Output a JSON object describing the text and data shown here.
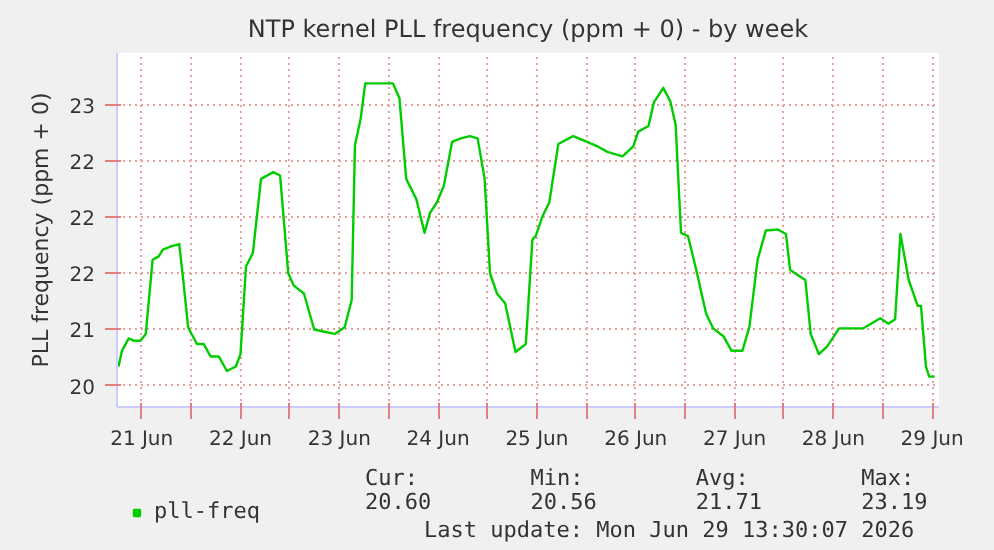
{
  "chart_data": {
    "type": "line",
    "title": "NTP kernel PLL frequency (ppm + 0) - by week",
    "ylabel": "PLL frequency (ppm + 0)",
    "x": [
      "2026-06-21T06:22",
      "2026-06-21T07:12",
      "2026-06-21T08:51",
      "2026-06-21T10:01",
      "2026-06-21T11:40",
      "2026-06-21T12:59",
      "2026-06-21T14:39",
      "2026-06-21T16:08",
      "2026-06-21T17:08",
      "2026-06-21T19:07",
      "2026-06-21T21:07",
      "2026-06-21T22:06",
      "2026-06-21T23:16",
      "2026-06-22T01:25",
      "2026-06-22T03:04",
      "2026-06-22T04:44",
      "2026-06-22T06:43",
      "2026-06-22T08:42",
      "2026-06-22T10:52",
      "2026-06-22T12:00",
      "2026-06-22T13:20",
      "2026-06-22T15:00",
      "2026-06-22T16:59",
      "2026-06-22T19:58",
      "2026-06-22T21:37",
      "2026-06-22T23:36",
      "2026-06-23T00:56",
      "2026-06-23T03:24",
      "2026-06-23T05:54",
      "2026-06-23T08:24",
      "2026-06-23T10:54",
      "2026-06-23T13:18",
      "2026-06-23T15:00",
      "2026-06-23T15:48",
      "2026-06-23T17:12",
      "2026-06-23T18:18",
      "2026-06-24T01:00",
      "2026-06-24T02:36",
      "2026-06-24T04:15",
      "2026-06-24T06:42",
      "2026-06-24T08:42",
      "2026-06-24T10:04",
      "2026-06-24T11:42",
      "2026-06-24T13:24",
      "2026-06-24T15:24",
      "2026-06-24T17:30",
      "2026-06-24T19:42",
      "2026-06-24T21:36",
      "2026-06-24T23:18",
      "2026-06-25T00:36",
      "2026-06-25T02:18",
      "2026-06-25T04:18",
      "2026-06-25T06:48",
      "2026-06-25T09:18",
      "2026-06-25T10:54",
      "2026-06-25T11:42",
      "2026-06-25T13:24",
      "2026-06-25T15:00",
      "2026-06-25T17:12",
      "2026-06-25T20:48",
      "2026-06-26T00:12",
      "2026-06-26T02:42",
      "2026-06-26T05:06",
      "2026-06-26T08:48",
      "2026-06-26T11:24",
      "2026-06-26T12:36",
      "2026-06-26T15:06",
      "2026-06-26T16:24",
      "2026-06-26T18:42",
      "2026-06-26T20:24",
      "2026-06-26T21:42",
      "2026-06-26T23:00",
      "2026-06-27T00:42",
      "2026-06-27T02:42",
      "2026-06-27T05:06",
      "2026-06-27T06:48",
      "2026-06-27T09:18",
      "2026-06-27T11:18",
      "2026-06-27T13:54",
      "2026-06-27T15:36",
      "2026-06-27T17:36",
      "2026-06-27T19:36",
      "2026-06-27T22:30",
      "2026-06-28T00:30",
      "2026-06-28T01:30",
      "2026-06-28T05:12",
      "2026-06-28T06:30",
      "2026-06-28T08:30",
      "2026-06-28T10:30",
      "2026-06-28T13:24",
      "2026-06-28T19:18",
      "2026-06-28T23:24",
      "2026-06-29T01:24",
      "2026-06-29T03:00",
      "2026-06-29T04:18",
      "2026-06-29T06:18",
      "2026-06-29T08:30",
      "2026-06-29T09:18",
      "2026-06-29T10:30",
      "2026-06-29T11:18",
      "2026-06-29T12:36"
    ],
    "series": [
      {
        "name": "pll-freq",
        "color": "#00cc00",
        "values": [
          20.67,
          20.81,
          20.92,
          20.9,
          20.9,
          20.96,
          21.62,
          21.65,
          21.71,
          21.74,
          21.76,
          21.44,
          21.02,
          20.87,
          20.87,
          20.76,
          20.76,
          20.63,
          20.67,
          20.78,
          21.56,
          21.68,
          22.34,
          22.4,
          22.37,
          21.5,
          21.39,
          21.32,
          21.0,
          20.98,
          20.96,
          21.02,
          21.26,
          22.64,
          22.88,
          23.19,
          23.19,
          23.06,
          22.34,
          22.16,
          21.86,
          22.04,
          22.13,
          22.28,
          22.67,
          22.7,
          22.72,
          22.7,
          22.34,
          21.5,
          21.32,
          21.23,
          20.8,
          20.87,
          21.8,
          21.83,
          22.01,
          22.13,
          22.65,
          22.72,
          22.67,
          22.63,
          22.58,
          22.54,
          22.63,
          22.76,
          22.81,
          23.02,
          23.15,
          23.03,
          22.82,
          21.86,
          21.83,
          21.53,
          21.14,
          21.01,
          20.94,
          20.81,
          20.81,
          21.02,
          21.62,
          21.88,
          21.89,
          21.85,
          21.53,
          21.44,
          20.96,
          20.78,
          20.85,
          21.01,
          21.01,
          21.1,
          21.05,
          21.09,
          21.85,
          21.44,
          21.21,
          21.21,
          20.67,
          20.58,
          20.58
        ]
      }
    ],
    "xlim": [
      "2026-06-21T06:00",
      "2026-06-29T13:40"
    ],
    "xticks": [
      {
        "value": "2026-06-21T12:00",
        "label": "21 Jun"
      },
      {
        "value": "2026-06-22T00:00",
        "label": null
      },
      {
        "value": "2026-06-22T12:00",
        "label": "22 Jun"
      },
      {
        "value": "2026-06-23T00:00",
        "label": null
      },
      {
        "value": "2026-06-23T12:00",
        "label": "23 Jun"
      },
      {
        "value": "2026-06-24T00:00",
        "label": null
      },
      {
        "value": "2026-06-24T12:00",
        "label": "24 Jun"
      },
      {
        "value": "2026-06-25T00:00",
        "label": null
      },
      {
        "value": "2026-06-25T12:00",
        "label": "25 Jun"
      },
      {
        "value": "2026-06-26T00:00",
        "label": null
      },
      {
        "value": "2026-06-26T12:00",
        "label": "26 Jun"
      },
      {
        "value": "2026-06-27T00:00",
        "label": null
      },
      {
        "value": "2026-06-27T12:00",
        "label": "27 Jun"
      },
      {
        "value": "2026-06-28T00:00",
        "label": null
      },
      {
        "value": "2026-06-28T12:00",
        "label": "28 Jun"
      },
      {
        "value": "2026-06-29T00:00",
        "label": null
      },
      {
        "value": "2026-06-29T12:00",
        "label": "29 Jun"
      }
    ],
    "ylim": [
      20.31,
      23.46
    ],
    "yticks": [
      {
        "value": 20.5,
        "label": "20"
      },
      {
        "value": 21,
        "label": "21"
      },
      {
        "value": 21.5,
        "label": "22"
      },
      {
        "value": 22,
        "label": "22"
      },
      {
        "value": 22.5,
        "label": "22"
      },
      {
        "value": 23,
        "label": "23"
      }
    ],
    "grid": true,
    "legend": "bottom",
    "line_style": "solid",
    "annotations": [
      "Cur:",
      "20.60",
      "Min:",
      "20.56",
      "Avg:",
      "21.71",
      "Max:",
      "23.19",
      "Last update: Mon Jun 29 13:30:07 2026"
    ]
  }
}
